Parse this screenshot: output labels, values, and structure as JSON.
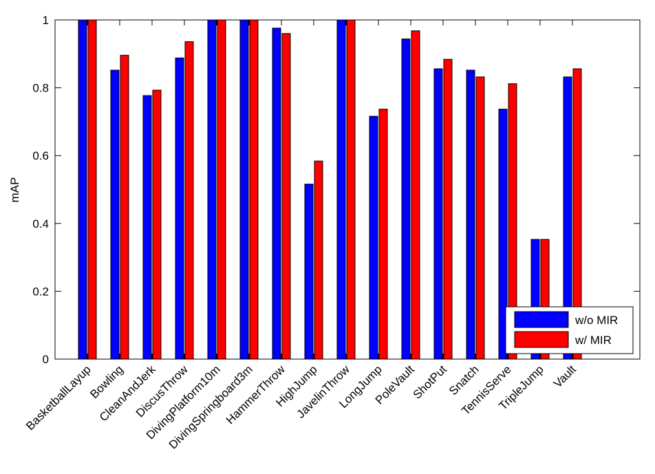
{
  "chart_data": {
    "type": "bar",
    "title": "",
    "xlabel": "",
    "ylabel": "mAP",
    "ylim": [
      0,
      1
    ],
    "yticks": [
      "0",
      "0.2",
      "0.4",
      "0.6",
      "0.8",
      "1"
    ],
    "grid": false,
    "legend_position": "bottom-right",
    "categories": [
      "BasketballLayup",
      "Bowling",
      "CleanAndJerk",
      "DiscusThrow",
      "DivingPlatform10m",
      "DivingSpringboard3m",
      "HammerThrow",
      "HighJump",
      "JavelinThrow",
      "LongJump",
      "PoleVault",
      "ShotPut",
      "Snatch",
      "TennisServe",
      "TripleJump",
      "Vault"
    ],
    "series": [
      {
        "name": "w/o MIR",
        "color": "#0000ff",
        "values": [
          1.0,
          0.852,
          0.777,
          0.888,
          1.0,
          1.0,
          0.976,
          0.516,
          1.0,
          0.716,
          0.944,
          0.856,
          0.852,
          0.737,
          0.353,
          0.832
        ]
      },
      {
        "name": "w/ MIR",
        "color": "#ff0000",
        "values": [
          1.0,
          0.896,
          0.793,
          0.936,
          1.0,
          1.0,
          0.96,
          0.584,
          1.0,
          0.737,
          0.968,
          0.884,
          0.832,
          0.812,
          0.353,
          0.856
        ]
      }
    ]
  }
}
